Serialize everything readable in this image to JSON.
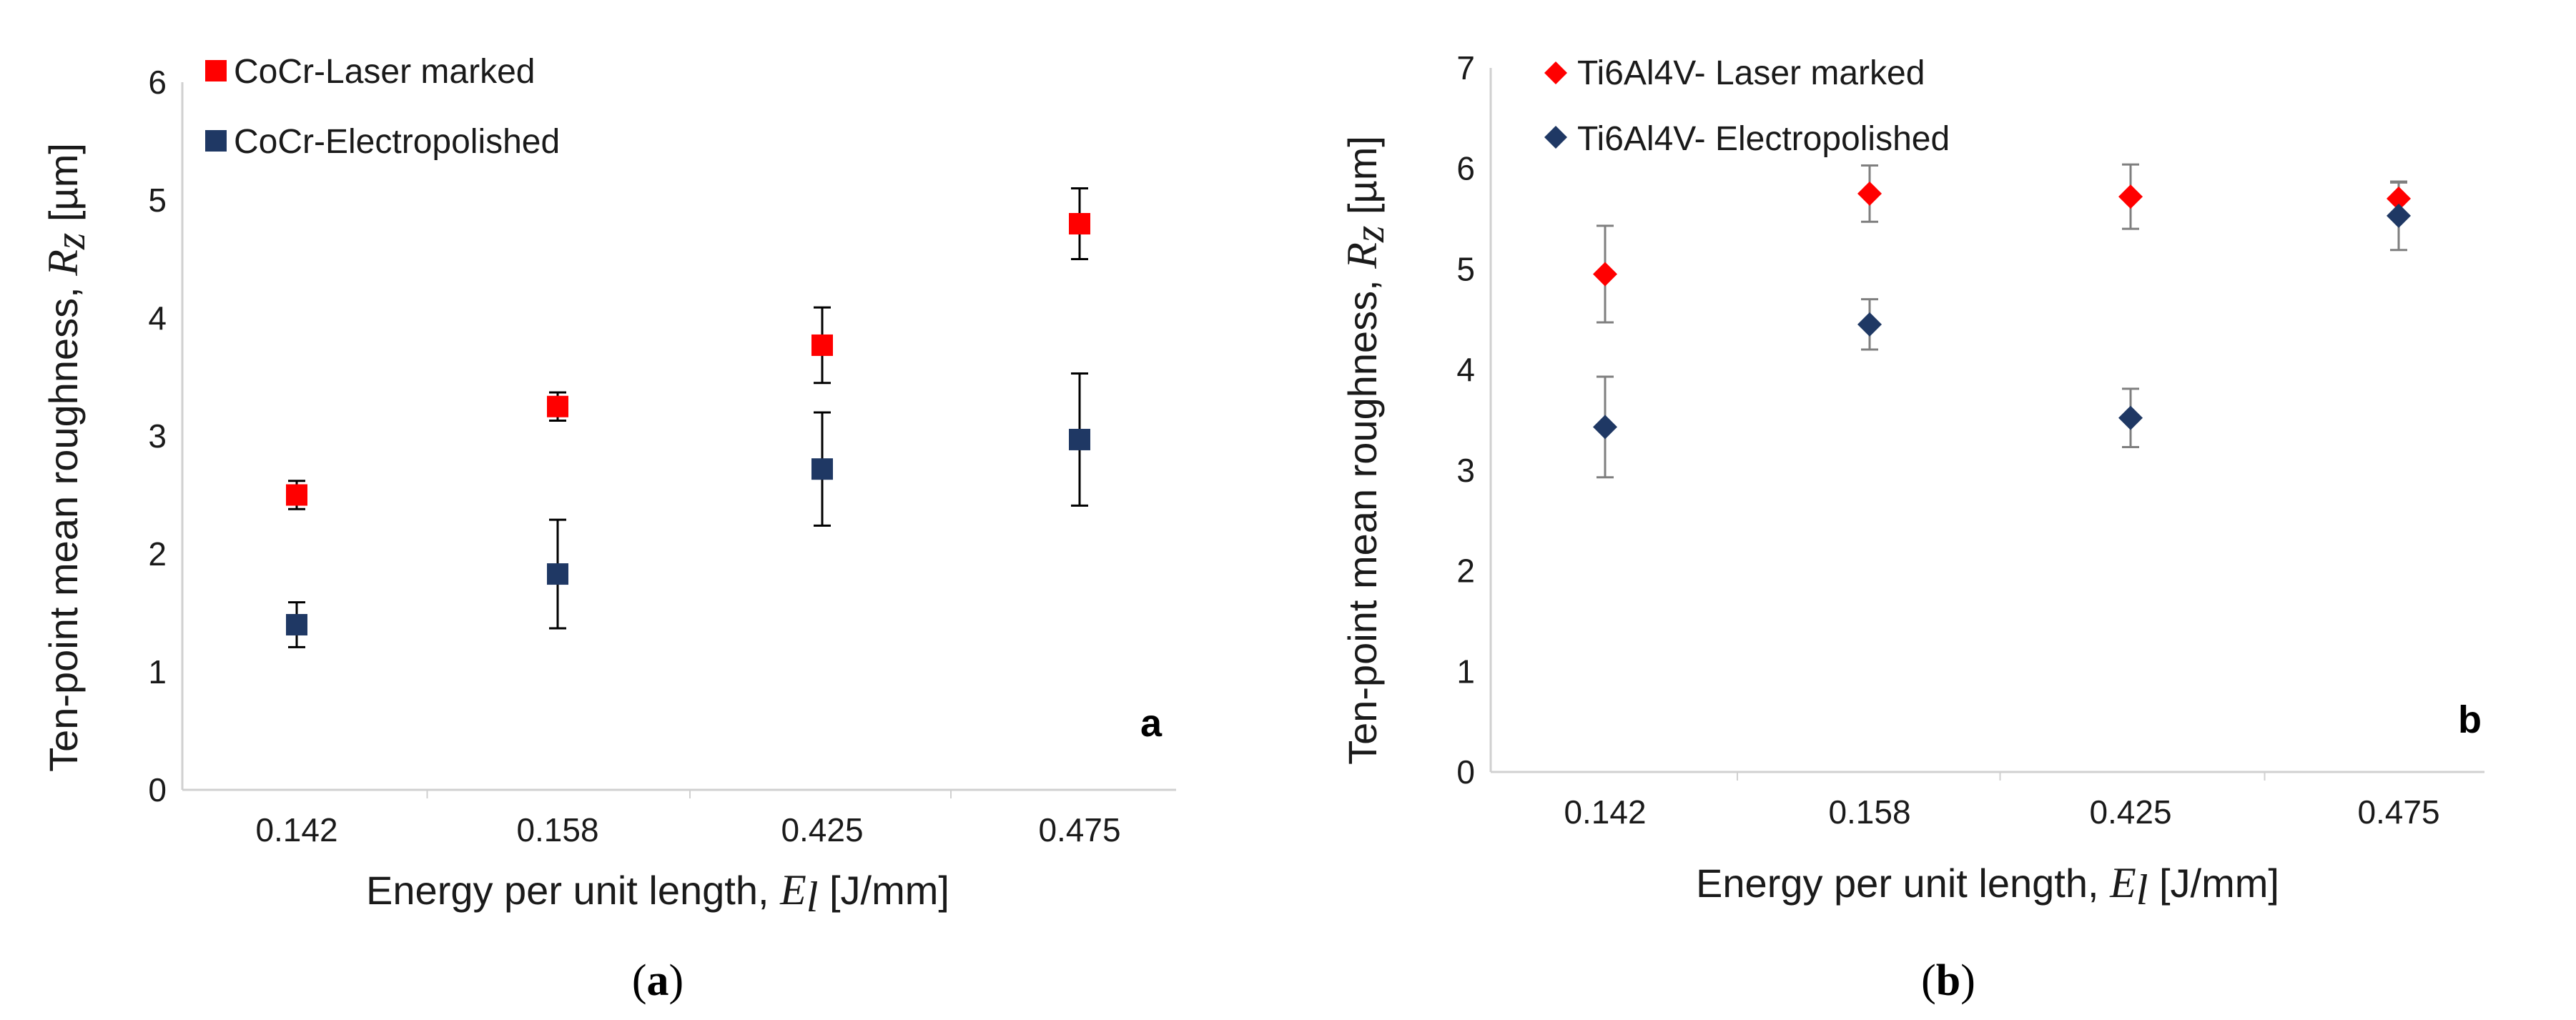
{
  "chart_data": [
    {
      "type": "scatter",
      "panel": "a",
      "caption": {
        "open": "(",
        "letter": "a",
        "close": ")"
      },
      "corner_label": "a",
      "categories": [
        "0.142",
        "0.158",
        "0.425",
        "0.475"
      ],
      "xlabel": {
        "text": "Energy per unit length, ",
        "symbol": "E",
        "sub": "l",
        "unit": " [J/mm]"
      },
      "ylabel": {
        "text": "Ten-point mean roughness, ",
        "symbol": "R",
        "sub": "z",
        "unit": " [µm]"
      },
      "ylim": [
        0,
        6
      ],
      "yticks": [
        "0",
        "1",
        "2",
        "3",
        "4",
        "5",
        "6"
      ],
      "legend_position": "top-left",
      "series": [
        {
          "name": "CoCr-Laser marked",
          "marker": "square",
          "color": "#ff0000",
          "values": [
            2.5,
            3.25,
            3.77,
            4.8
          ],
          "errors": [
            0.12,
            0.12,
            0.32,
            0.3
          ]
        },
        {
          "name": "CoCr-Electropolished",
          "marker": "square",
          "color": "#1f3864",
          "values": [
            1.4,
            1.83,
            2.72,
            2.97
          ],
          "errors": [
            0.19,
            0.46,
            0.48,
            0.56
          ]
        }
      ]
    },
    {
      "type": "scatter",
      "panel": "b",
      "caption": {
        "open": "(",
        "letter": "b",
        "close": ")"
      },
      "corner_label": "b",
      "categories": [
        "0.142",
        "0.158",
        "0.425",
        "0.475"
      ],
      "xlabel": {
        "text": "Energy per unit length, ",
        "symbol": "E",
        "sub": "l",
        "unit": " [J/mm]"
      },
      "ylabel": {
        "text": "Ten-point mean roughness, ",
        "symbol": "R",
        "sub": "z",
        "unit": " [µm]"
      },
      "ylim": [
        0,
        7
      ],
      "yticks": [
        "0",
        "1",
        "2",
        "3",
        "4",
        "5",
        "6",
        "7"
      ],
      "legend_position": "top-left",
      "series": [
        {
          "name": "Ti6Al4V- Laser marked",
          "marker": "diamond",
          "color": "#ff0000",
          "values": [
            4.95,
            5.75,
            5.72,
            5.7
          ],
          "errors": [
            0.48,
            0.28,
            0.32,
            0.16
          ]
        },
        {
          "name": "Ti6Al4V- Electropolished",
          "marker": "diamond",
          "color": "#1f3864",
          "values": [
            3.43,
            4.45,
            3.52,
            5.53
          ],
          "errors": [
            0.5,
            0.25,
            0.29,
            0.34
          ]
        }
      ]
    }
  ]
}
